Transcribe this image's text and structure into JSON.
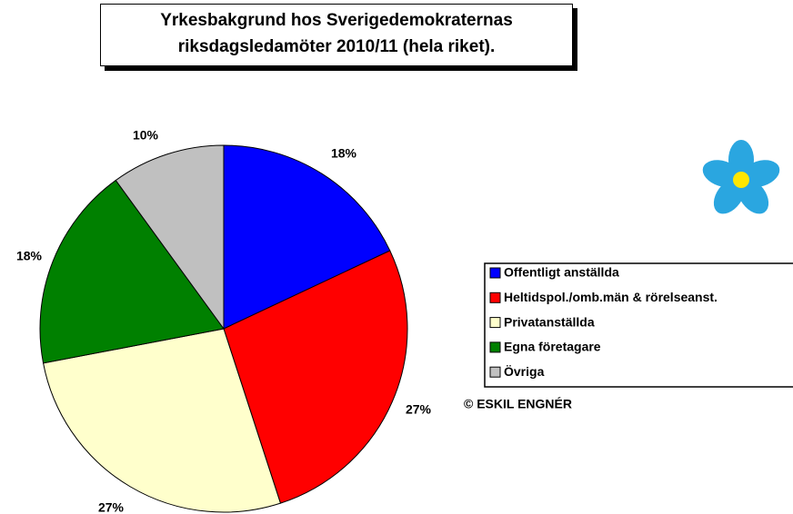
{
  "chart_data": {
    "type": "pie",
    "title": "Yrkesbakgrund hos Sverigedemokraternas riksdagsledamöter 2010/11 (hela riket).",
    "categories": [
      "Offentligt anställda",
      "Heltidspol./omb.män & rörelseanst.",
      "Privatanställda",
      "Egna företagare",
      "Övriga"
    ],
    "values": [
      18,
      27,
      27,
      18,
      10
    ],
    "value_labels": [
      "18%",
      "27%",
      "27%",
      "18%",
      "10%"
    ],
    "colors": [
      "#0000ff",
      "#ff0000",
      "#ffffcc",
      "#008000",
      "#c0c0c0"
    ],
    "annotation": "© ESKIL ENGNÉR",
    "legend": "right"
  }
}
